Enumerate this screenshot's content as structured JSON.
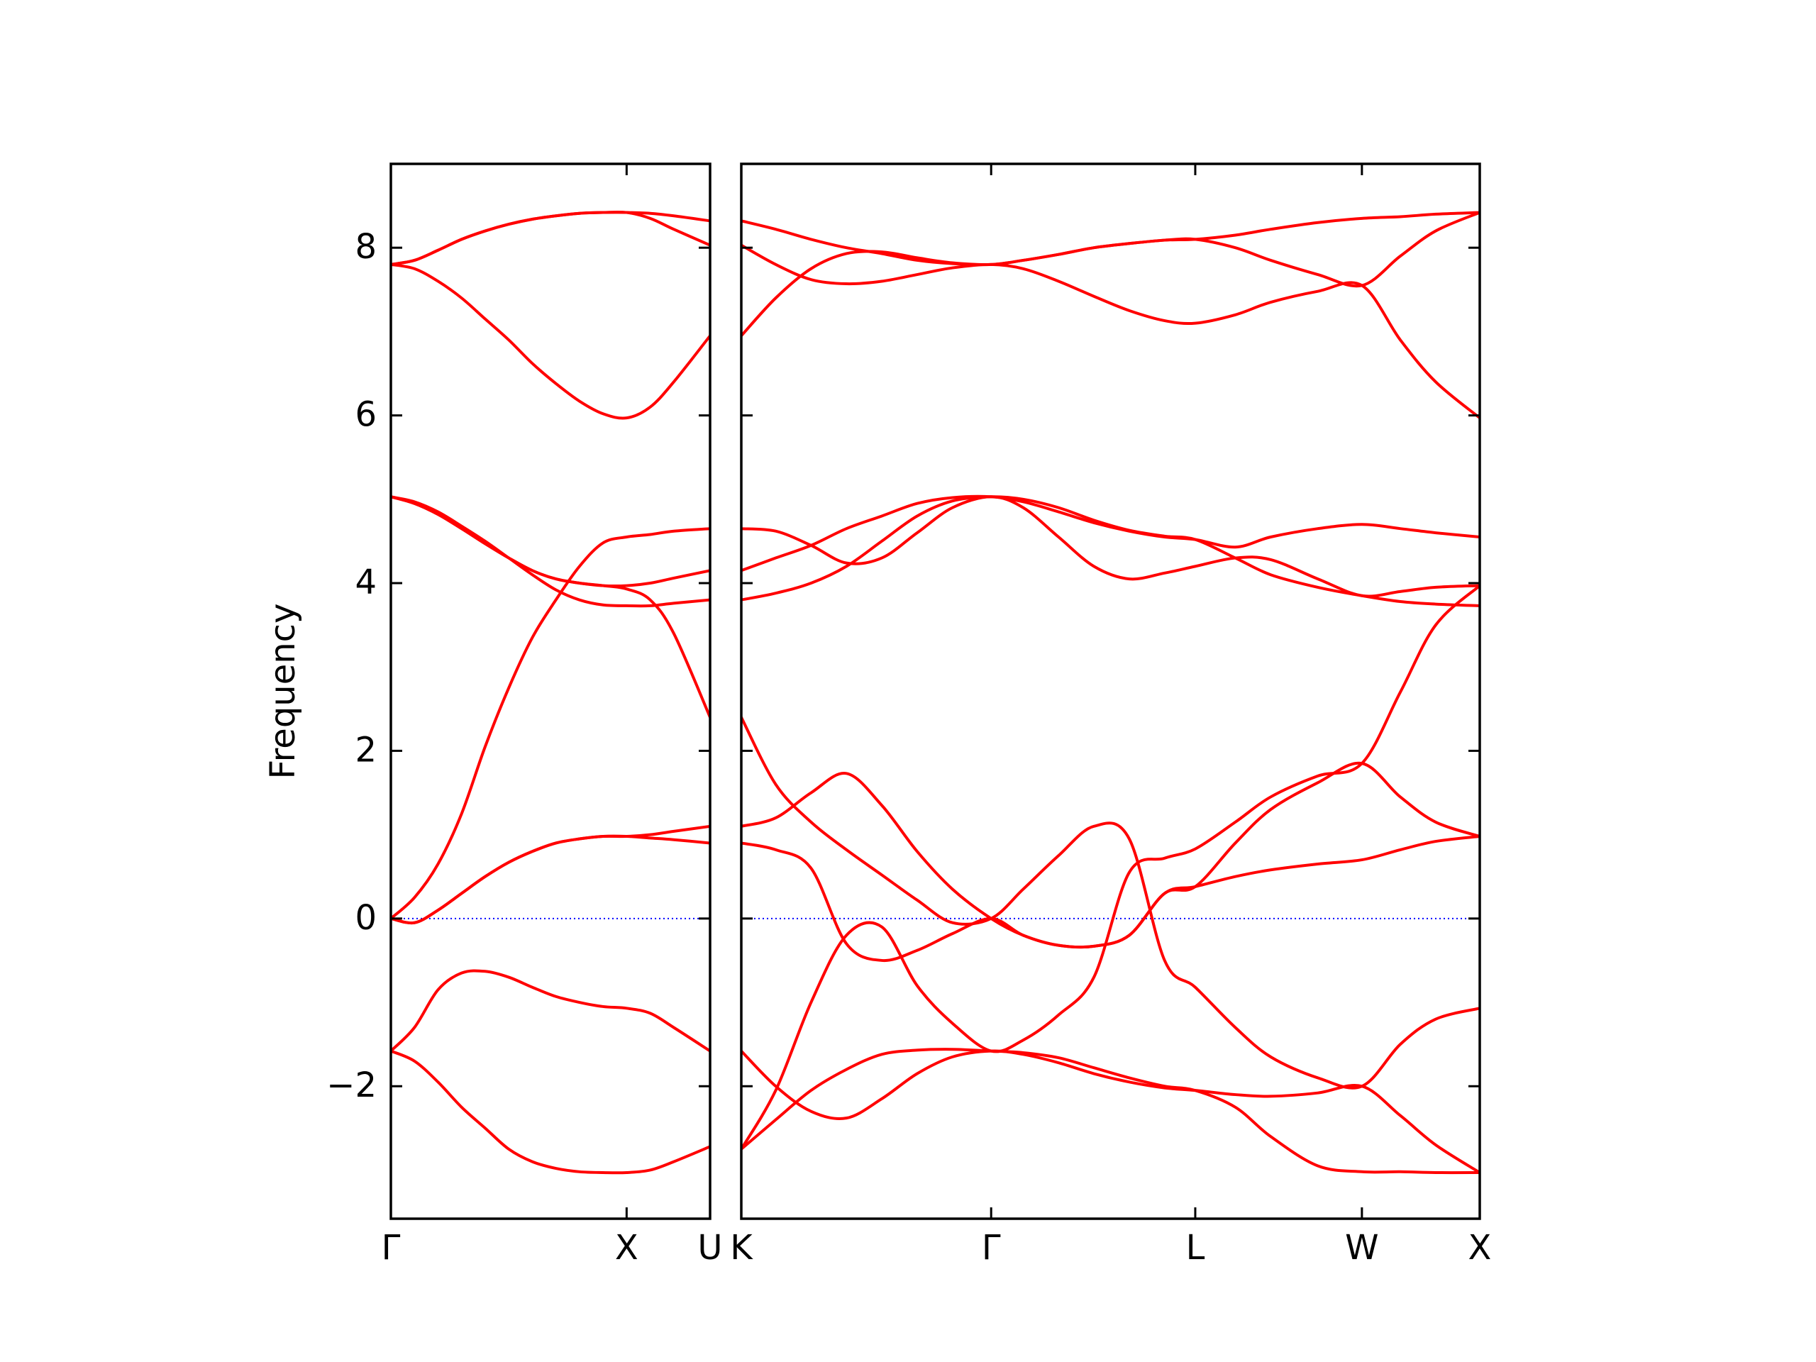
{
  "chart_data": [
    {
      "type": "line",
      "ylabel": "Frequency",
      "xlim": [
        0,
        1.354
      ],
      "xticks": [
        {
          "value": 0,
          "label": "Γ"
        },
        {
          "value": 1,
          "label": "X"
        },
        {
          "value": 1.354,
          "label": "U"
        }
      ],
      "ylim": [
        -3.58,
        9.0
      ],
      "yticks": [
        {
          "value": -2,
          "label": "−2"
        },
        0,
        2,
        4,
        6,
        8
      ],
      "reference_line": 0,
      "reference_color": "#0000ff",
      "x": [
        0,
        0.1,
        0.2,
        0.3,
        0.4,
        0.5,
        0.6,
        0.7,
        0.8,
        0.9,
        1.0,
        1.1,
        1.2,
        1.354
      ],
      "series": [
        {
          "color": "#ff0000",
          "values": [
            -1.58,
            -1.7,
            -1.95,
            -2.25,
            -2.5,
            -2.75,
            -2.9,
            -2.98,
            -3.02,
            -3.03,
            -3.03,
            -3.0,
            -2.9,
            -2.72
          ]
        },
        {
          "color": "#ff0000",
          "values": [
            -1.58,
            -1.3,
            -0.85,
            -0.65,
            -0.63,
            -0.7,
            -0.82,
            -0.93,
            -1.0,
            -1.05,
            -1.07,
            -1.13,
            -1.3,
            -1.58
          ]
        },
        {
          "color": "#ff0000",
          "values": [
            0,
            -0.05,
            0.1,
            0.3,
            0.5,
            0.67,
            0.8,
            0.9,
            0.95,
            0.98,
            0.98,
            1.0,
            1.04,
            1.1
          ]
        },
        {
          "color": "#ff0000",
          "values": [
            0,
            -0.05,
            0.1,
            0.3,
            0.5,
            0.67,
            0.8,
            0.9,
            0.95,
            0.98,
            0.98,
            0.96,
            0.94,
            0.9
          ]
        },
        {
          "color": "#ff0000",
          "values": [
            0,
            0.25,
            0.65,
            1.25,
            2.05,
            2.75,
            3.35,
            3.8,
            4.2,
            4.48,
            4.55,
            4.58,
            4.62,
            4.65
          ]
        },
        {
          "color": "#ff0000",
          "values": [
            5.03,
            4.97,
            4.85,
            4.68,
            4.5,
            4.3,
            4.1,
            3.92,
            3.8,
            3.74,
            3.73,
            3.73,
            3.76,
            3.8
          ]
        },
        {
          "color": "#ff0000",
          "values": [
            5.03,
            4.95,
            4.82,
            4.65,
            4.47,
            4.3,
            4.15,
            4.05,
            4.0,
            3.97,
            3.97,
            4.0,
            4.06,
            4.15
          ]
        },
        {
          "color": "#ff0000",
          "values": [
            5.03,
            4.95,
            4.82,
            4.65,
            4.47,
            4.3,
            4.15,
            4.05,
            4.0,
            3.97,
            3.93,
            3.8,
            3.4,
            2.4
          ]
        },
        {
          "color": "#ff0000",
          "values": [
            7.8,
            7.85,
            7.97,
            8.1,
            8.2,
            8.28,
            8.34,
            8.38,
            8.41,
            8.42,
            8.42,
            8.41,
            8.38,
            8.32
          ]
        },
        {
          "color": "#ff0000",
          "values": [
            7.8,
            7.85,
            7.97,
            8.1,
            8.2,
            8.28,
            8.34,
            8.38,
            8.41,
            8.42,
            8.42,
            8.35,
            8.22,
            8.03
          ]
        },
        {
          "color": "#ff0000",
          "values": [
            7.8,
            7.75,
            7.6,
            7.4,
            7.15,
            6.9,
            6.62,
            6.38,
            6.17,
            6.02,
            5.97,
            6.1,
            6.4,
            6.95
          ]
        }
      ]
    },
    {
      "type": "line",
      "ytick_labels": false,
      "xlim": [
        1.354,
        4.487
      ],
      "xticks": [
        {
          "value": 1.354,
          "label": "K"
        },
        {
          "value": 2.414,
          "label": "Γ"
        },
        {
          "value": 3.28,
          "label": "L"
        },
        {
          "value": 3.987,
          "label": "W"
        },
        {
          "value": 4.487,
          "label": "X"
        }
      ],
      "ylim": [
        -3.58,
        9.0
      ],
      "yticks": [
        -2,
        0,
        2,
        4,
        6,
        8
      ],
      "reference_line": 0,
      "reference_color": "#0000ff",
      "x": [
        1.354,
        1.5,
        1.65,
        1.8,
        1.95,
        2.1,
        2.25,
        2.414,
        2.55,
        2.7,
        2.85,
        3.0,
        3.15,
        3.28,
        3.45,
        3.6,
        3.8,
        3.987,
        4.15,
        4.3,
        4.487
      ],
      "series": [
        {
          "color": "#ff0000",
          "values": [
            8.32,
            8.22,
            8.1,
            8.0,
            7.93,
            7.85,
            7.81,
            7.8,
            7.85,
            7.92,
            8.0,
            8.05,
            8.09,
            8.1,
            8.15,
            8.22,
            8.3,
            8.35,
            8.37,
            8.4,
            8.42
          ]
        },
        {
          "color": "#ff0000",
          "values": [
            8.03,
            7.8,
            7.62,
            7.57,
            7.6,
            7.68,
            7.76,
            7.8,
            7.75,
            7.6,
            7.42,
            7.25,
            7.13,
            7.1,
            7.2,
            7.35,
            7.48,
            7.55,
            6.9,
            6.4,
            5.97
          ]
        },
        {
          "color": "#ff0000",
          "values": [
            6.95,
            7.4,
            7.75,
            7.93,
            7.95,
            7.88,
            7.82,
            7.8,
            7.85,
            7.92,
            8.0,
            8.05,
            8.09,
            8.1,
            8.0,
            7.85,
            7.68,
            7.55,
            7.9,
            8.2,
            8.42
          ]
        },
        {
          "color": "#ff0000",
          "values": [
            4.65,
            4.62,
            4.45,
            4.24,
            4.3,
            4.6,
            4.9,
            5.03,
            4.9,
            4.55,
            4.2,
            4.05,
            4.12,
            4.2,
            4.3,
            4.28,
            4.05,
            3.85,
            3.9,
            3.95,
            3.97
          ]
        },
        {
          "color": "#ff0000",
          "values": [
            4.15,
            4.3,
            4.45,
            4.65,
            4.8,
            4.95,
            5.02,
            5.03,
            4.97,
            4.85,
            4.72,
            4.62,
            4.55,
            4.52,
            4.43,
            4.55,
            4.65,
            4.7,
            4.65,
            4.6,
            4.55
          ]
        },
        {
          "color": "#ff0000",
          "values": [
            3.8,
            3.88,
            4.0,
            4.2,
            4.5,
            4.8,
            4.98,
            5.03,
            5.0,
            4.9,
            4.75,
            4.63,
            4.56,
            4.52,
            4.3,
            4.1,
            3.95,
            3.85,
            3.78,
            3.75,
            3.73
          ]
        },
        {
          "color": "#ff0000",
          "values": [
            2.4,
            1.6,
            1.15,
            0.82,
            0.52,
            0.22,
            -0.05,
            0,
            0.35,
            0.75,
            1.1,
            0.95,
            -0.5,
            -0.82,
            -1.3,
            -1.65,
            -1.9,
            -2.0,
            -1.5,
            -1.2,
            -1.07
          ]
        },
        {
          "color": "#ff0000",
          "values": [
            1.1,
            1.2,
            1.5,
            1.73,
            1.35,
            0.8,
            0.35,
            0,
            -0.2,
            -0.32,
            -0.33,
            -0.2,
            0.3,
            0.38,
            0.5,
            0.58,
            0.65,
            0.7,
            0.82,
            0.92,
            0.98
          ]
        },
        {
          "color": "#ff0000",
          "values": [
            0.9,
            0.82,
            0.6,
            -0.3,
            -0.5,
            -0.38,
            -0.18,
            0,
            -0.2,
            -0.32,
            -0.33,
            -0.2,
            0.3,
            0.38,
            0.9,
            1.3,
            1.62,
            1.85,
            1.45,
            1.15,
            0.98
          ]
        },
        {
          "color": "#ff0000",
          "values": [
            -2.75,
            -2.05,
            -1.0,
            -0.2,
            -0.1,
            -0.8,
            -1.25,
            -1.58,
            -1.45,
            -1.15,
            -0.7,
            0.55,
            0.72,
            0.83,
            1.15,
            1.45,
            1.7,
            1.85,
            2.7,
            3.5,
            3.97
          ]
        },
        {
          "color": "#ff0000",
          "values": [
            -1.58,
            -2.0,
            -2.3,
            -2.38,
            -2.15,
            -1.85,
            -1.65,
            -1.58,
            -1.62,
            -1.72,
            -1.85,
            -1.95,
            -2.02,
            -2.05,
            -2.1,
            -2.12,
            -2.08,
            -2.0,
            -2.35,
            -2.7,
            -3.03
          ]
        },
        {
          "color": "#ff0000",
          "values": [
            -2.75,
            -2.4,
            -2.05,
            -1.8,
            -1.62,
            -1.57,
            -1.56,
            -1.58,
            -1.6,
            -1.66,
            -1.78,
            -1.9,
            -2.0,
            -2.05,
            -2.25,
            -2.6,
            -2.95,
            -3.02,
            -3.02,
            -3.03,
            -3.03
          ]
        }
      ]
    }
  ]
}
